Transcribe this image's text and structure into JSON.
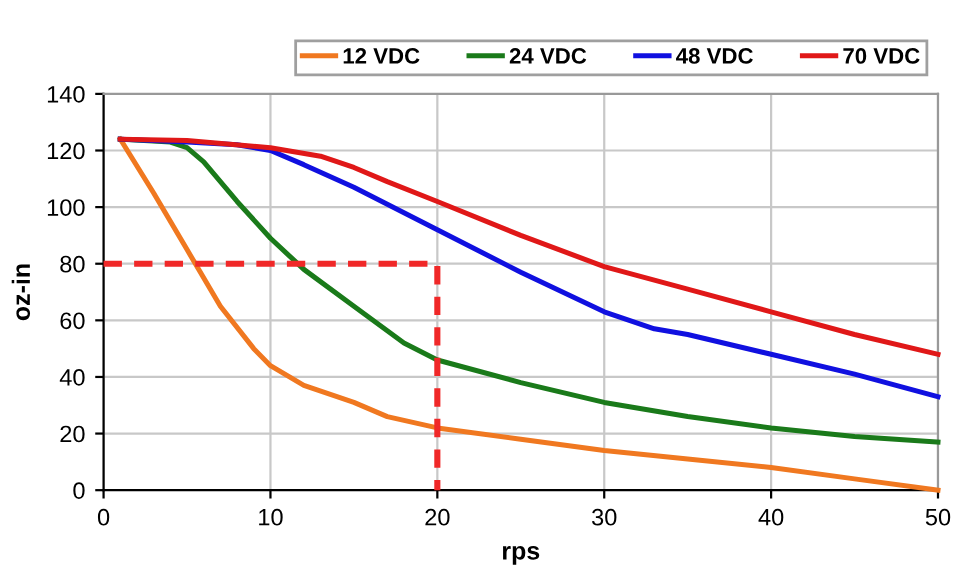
{
  "chart_data": {
    "type": "line",
    "xlabel": "rps",
    "ylabel": "oz-in",
    "xlim": [
      0,
      50
    ],
    "xticks": [
      0,
      10,
      20,
      30,
      40,
      50
    ],
    "ylim": [
      0,
      140
    ],
    "yticks": [
      0,
      20,
      40,
      60,
      80,
      100,
      120,
      140
    ],
    "grid": true,
    "legend": "top right",
    "marker": "none",
    "series": [
      {
        "name": "12 VDC",
        "color": "#f07820",
        "x": [
          1,
          3,
          5,
          7,
          9,
          10,
          12,
          15,
          17,
          20,
          25,
          30,
          35,
          40,
          45,
          50
        ],
        "values": [
          124,
          105,
          85,
          65,
          50,
          44,
          37,
          31,
          26,
          22,
          18,
          14,
          11,
          8,
          4,
          0
        ]
      },
      {
        "name": "24 VDC",
        "color": "#1a7a1a",
        "x": [
          1,
          4,
          5,
          6,
          8,
          10,
          12,
          15,
          18,
          20,
          25,
          30,
          35,
          40,
          45,
          50
        ],
        "values": [
          124,
          123,
          121,
          116,
          102,
          89,
          78,
          65,
          52,
          46,
          38,
          31,
          26,
          22,
          19,
          17
        ]
      },
      {
        "name": "48 VDC",
        "color": "#1010e0",
        "x": [
          1,
          5,
          8,
          10,
          12,
          15,
          20,
          25,
          30,
          33,
          35,
          40,
          45,
          50
        ],
        "values": [
          124,
          123,
          122,
          120,
          115,
          107,
          92,
          77,
          63,
          57,
          55,
          48,
          41,
          33
        ]
      },
      {
        "name": "70 VDC",
        "color": "#e01818",
        "x": [
          1,
          5,
          10,
          13,
          15,
          17,
          20,
          25,
          30,
          35,
          40,
          45,
          50
        ],
        "values": [
          124,
          123.5,
          121,
          118,
          114,
          109,
          102,
          90,
          79,
          71,
          63,
          55,
          48
        ]
      },
      {
        "color": "#f02828",
        "line_style": "dashed",
        "x": [
          0,
          20,
          20
        ],
        "values": [
          80,
          80,
          0
        ]
      }
    ]
  }
}
